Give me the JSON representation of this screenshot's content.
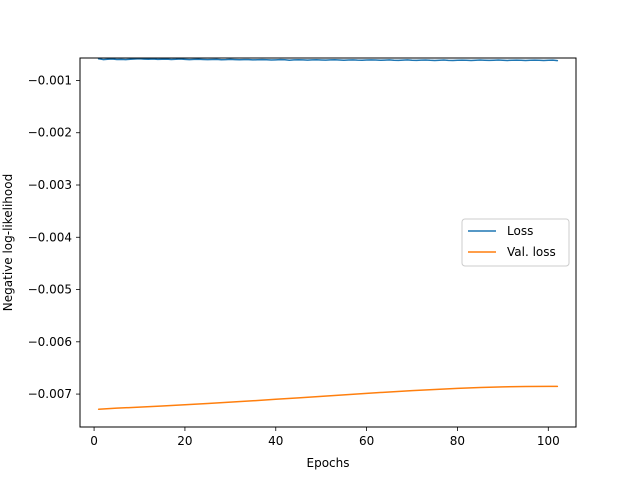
{
  "chart_data": {
    "type": "line",
    "title": "",
    "xlabel": "Epochs",
    "ylabel": "Negative log-likelihood",
    "xlim": [
      -3.1,
      106.1
    ],
    "ylim": [
      -0.00763,
      -0.00057
    ],
    "xticks": [
      0,
      20,
      40,
      60,
      80,
      100
    ],
    "xtick_labels": [
      "0",
      "20",
      "40",
      "60",
      "80",
      "100"
    ],
    "yticks": [
      -0.001,
      -0.002,
      -0.003,
      -0.004,
      -0.005,
      -0.006,
      -0.007
    ],
    "ytick_labels": [
      "−0.001",
      "−0.002",
      "−0.003",
      "−0.004",
      "−0.005",
      "−0.006",
      "−0.007"
    ],
    "grid": false,
    "legend_position": "center-right",
    "series": [
      {
        "name": "Loss",
        "color": "#1f77b4",
        "x": [
          1,
          2,
          3,
          4,
          5,
          6,
          7,
          8,
          9,
          10,
          11,
          12,
          13,
          14,
          15,
          16,
          17,
          18,
          19,
          20,
          21,
          22,
          23,
          24,
          25,
          26,
          27,
          28,
          29,
          30,
          31,
          32,
          33,
          34,
          35,
          36,
          37,
          38,
          39,
          40,
          41,
          42,
          43,
          44,
          45,
          46,
          47,
          48,
          49,
          50,
          51,
          52,
          53,
          54,
          55,
          56,
          57,
          58,
          59,
          60,
          61,
          62,
          63,
          64,
          65,
          66,
          67,
          68,
          69,
          70,
          71,
          72,
          73,
          74,
          75,
          76,
          77,
          78,
          79,
          80,
          81,
          82,
          83,
          84,
          85,
          86,
          87,
          88,
          89,
          90,
          91,
          92,
          93,
          94,
          95,
          96,
          97,
          98,
          99,
          100,
          101,
          102
        ],
        "y": [
          -0.000585,
          -0.0006,
          -0.000595,
          -0.00059,
          -0.000598,
          -0.000596,
          -0.0006,
          -0.000594,
          -0.000588,
          -0.000585,
          -0.000592,
          -0.000595,
          -0.00059,
          -0.000597,
          -0.000593,
          -0.000591,
          -0.000598,
          -0.000595,
          -0.00059,
          -0.000596,
          -0.0006,
          -0.000597,
          -0.000593,
          -0.000598,
          -0.000602,
          -0.000598,
          -0.000596,
          -0.000603,
          -0.000601,
          -0.000597,
          -0.0006,
          -0.000604,
          -0.0006,
          -0.000602,
          -0.000606,
          -0.000603,
          -0.0006,
          -0.000604,
          -0.000609,
          -0.000605,
          -0.000601,
          -0.000603,
          -0.000612,
          -0.000607,
          -0.000603,
          -0.000606,
          -0.00061,
          -0.000606,
          -0.000604,
          -0.000608,
          -0.000611,
          -0.000607,
          -0.000603,
          -0.000608,
          -0.000613,
          -0.000609,
          -0.000605,
          -0.00061,
          -0.000612,
          -0.000608,
          -0.000606,
          -0.000609,
          -0.000614,
          -0.00061,
          -0.000606,
          -0.000612,
          -0.000615,
          -0.00061,
          -0.000607,
          -0.000613,
          -0.000616,
          -0.000611,
          -0.000608,
          -0.000614,
          -0.000617,
          -0.000612,
          -0.000609,
          -0.000615,
          -0.000618,
          -0.000613,
          -0.00061,
          -0.000614,
          -0.000617,
          -0.000612,
          -0.000609,
          -0.000613,
          -0.000616,
          -0.000612,
          -0.000609,
          -0.000614,
          -0.000617,
          -0.000613,
          -0.00061,
          -0.000613,
          -0.000617,
          -0.000612,
          -0.00061,
          -0.000614,
          -0.000618,
          -0.000613,
          -0.000611,
          -0.00062
        ]
      },
      {
        "name": "Val. loss",
        "color": "#ff7f0e",
        "x": [
          1,
          5,
          10,
          15,
          20,
          25,
          30,
          35,
          40,
          45,
          50,
          55,
          60,
          65,
          70,
          75,
          80,
          85,
          90,
          95,
          100,
          102
        ],
        "y": [
          -0.00729,
          -0.00727,
          -0.00725,
          -0.007228,
          -0.007205,
          -0.00718,
          -0.007155,
          -0.007128,
          -0.0071,
          -0.007072,
          -0.007043,
          -0.007015,
          -0.006987,
          -0.00696,
          -0.006935,
          -0.006912,
          -0.006892,
          -0.006875,
          -0.006862,
          -0.006855,
          -0.006852,
          -0.006852
        ]
      }
    ]
  }
}
